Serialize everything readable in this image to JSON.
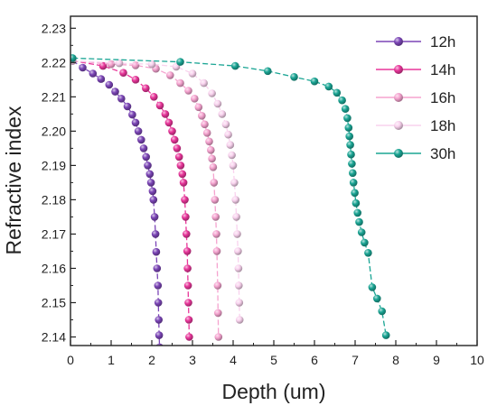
{
  "chart_data": {
    "type": "line",
    "title": "",
    "xlabel": "Depth (um)",
    "ylabel": "Refractive index",
    "xlim": [
      0,
      10
    ],
    "ylim": [
      2.1375,
      2.2335
    ],
    "x_ticks": [
      0,
      1,
      2,
      3,
      4,
      5,
      6,
      7,
      8,
      9,
      10
    ],
    "x_tick_labels": [
      "0",
      "1",
      "2",
      "3",
      "4",
      "5",
      "6",
      "7",
      "8",
      "9",
      "10"
    ],
    "y_ticks": [
      2.14,
      2.15,
      2.16,
      2.17,
      2.18,
      2.19,
      2.2,
      2.21,
      2.22,
      2.23
    ],
    "y_tick_labels": [
      "2.14",
      "2.15",
      "2.16",
      "2.17",
      "2.18",
      "2.19",
      "2.20",
      "2.21",
      "2.22",
      "2.23"
    ],
    "grid": false,
    "legend_position": "top-right",
    "series": [
      {
        "name": "12h",
        "color": "#7b45b6",
        "line_style": "dashed",
        "x": [
          0.05,
          0.3,
          0.55,
          0.75,
          0.95,
          1.1,
          1.25,
          1.4,
          1.52,
          1.6,
          1.67,
          1.74,
          1.8,
          1.86,
          1.9,
          1.95,
          1.98,
          2.02,
          2.04,
          2.07,
          2.09,
          2.11,
          2.13,
          2.15,
          2.16,
          2.17,
          2.18,
          2.19
        ],
        "y": [
          2.2205,
          2.2185,
          2.2168,
          2.2152,
          2.2135,
          2.2115,
          2.2095,
          2.2072,
          2.2048,
          2.2025,
          2.2,
          2.1975,
          2.195,
          2.1925,
          2.19,
          2.1875,
          2.185,
          2.1825,
          2.18,
          2.175,
          2.17,
          2.1648,
          2.16,
          2.155,
          2.15,
          2.145,
          2.1405,
          2.137
        ]
      },
      {
        "name": "14h",
        "color": "#e8369a",
        "line_style": "dashed",
        "x": [
          0.05,
          0.8,
          1.3,
          1.6,
          1.85,
          2.05,
          2.2,
          2.33,
          2.42,
          2.5,
          2.56,
          2.62,
          2.67,
          2.71,
          2.75,
          2.78,
          2.81,
          2.83,
          2.85,
          2.87,
          2.88,
          2.89,
          2.9,
          2.91,
          2.92
        ],
        "y": [
          2.2205,
          2.219,
          2.217,
          2.215,
          2.2125,
          2.21,
          2.2075,
          2.205,
          2.2025,
          2.2,
          2.1975,
          2.195,
          2.1925,
          2.19,
          2.1875,
          2.185,
          2.18,
          2.175,
          2.17,
          2.165,
          2.16,
          2.155,
          2.15,
          2.145,
          2.14
        ]
      },
      {
        "name": "16h",
        "color": "#f5a3cf",
        "line_style": "dashed",
        "x": [
          0.05,
          1.0,
          1.6,
          2.1,
          2.45,
          2.7,
          2.9,
          3.05,
          3.15,
          3.23,
          3.3,
          3.36,
          3.41,
          3.45,
          3.48,
          3.51,
          3.53,
          3.55,
          3.57,
          3.59,
          3.6,
          3.62,
          3.63,
          3.64
        ],
        "y": [
          2.2205,
          2.2195,
          2.2192,
          2.2182,
          2.2163,
          2.214,
          2.2118,
          2.2095,
          2.207,
          2.2045,
          2.202,
          2.1995,
          2.197,
          2.1945,
          2.192,
          2.1895,
          2.185,
          2.18,
          2.175,
          2.17,
          2.165,
          2.155,
          2.147,
          2.14
        ]
      },
      {
        "name": "18h",
        "color": "#f9d2ee",
        "line_style": "dashed",
        "x": [
          0.05,
          1.2,
          2.0,
          2.6,
          3.0,
          3.28,
          3.48,
          3.62,
          3.73,
          3.82,
          3.88,
          3.93,
          3.97,
          4.0,
          4.03,
          4.06,
          4.08,
          4.1,
          4.12,
          4.13,
          4.14,
          4.15,
          4.16
        ],
        "y": [
          2.2205,
          2.2198,
          2.2195,
          2.2188,
          2.2168,
          2.214,
          2.211,
          2.208,
          2.205,
          2.202,
          2.199,
          2.196,
          2.193,
          2.19,
          2.185,
          2.18,
          2.175,
          2.17,
          2.165,
          2.16,
          2.155,
          2.15,
          2.145
        ]
      },
      {
        "name": "30h",
        "color": "#1aa594",
        "line_style": "dashed",
        "x": [
          0.05,
          2.7,
          4.05,
          4.85,
          5.5,
          6.0,
          6.35,
          6.55,
          6.68,
          6.76,
          6.81,
          6.84,
          6.86,
          6.88,
          6.9,
          6.92,
          6.94,
          6.96,
          6.99,
          7.02,
          7.06,
          7.1,
          7.16,
          7.23,
          7.32,
          7.42,
          7.54,
          7.66,
          7.76
        ],
        "y": [
          2.2213,
          2.2202,
          2.219,
          2.2175,
          2.2158,
          2.2145,
          2.213,
          2.2112,
          2.209,
          2.2065,
          2.2038,
          2.201,
          2.1985,
          2.196,
          2.1932,
          2.1905,
          2.1878,
          2.185,
          2.182,
          2.179,
          2.1762,
          2.1735,
          2.1705,
          2.1675,
          2.1645,
          2.1545,
          2.1512,
          2.1475,
          2.1405
        ]
      }
    ]
  }
}
